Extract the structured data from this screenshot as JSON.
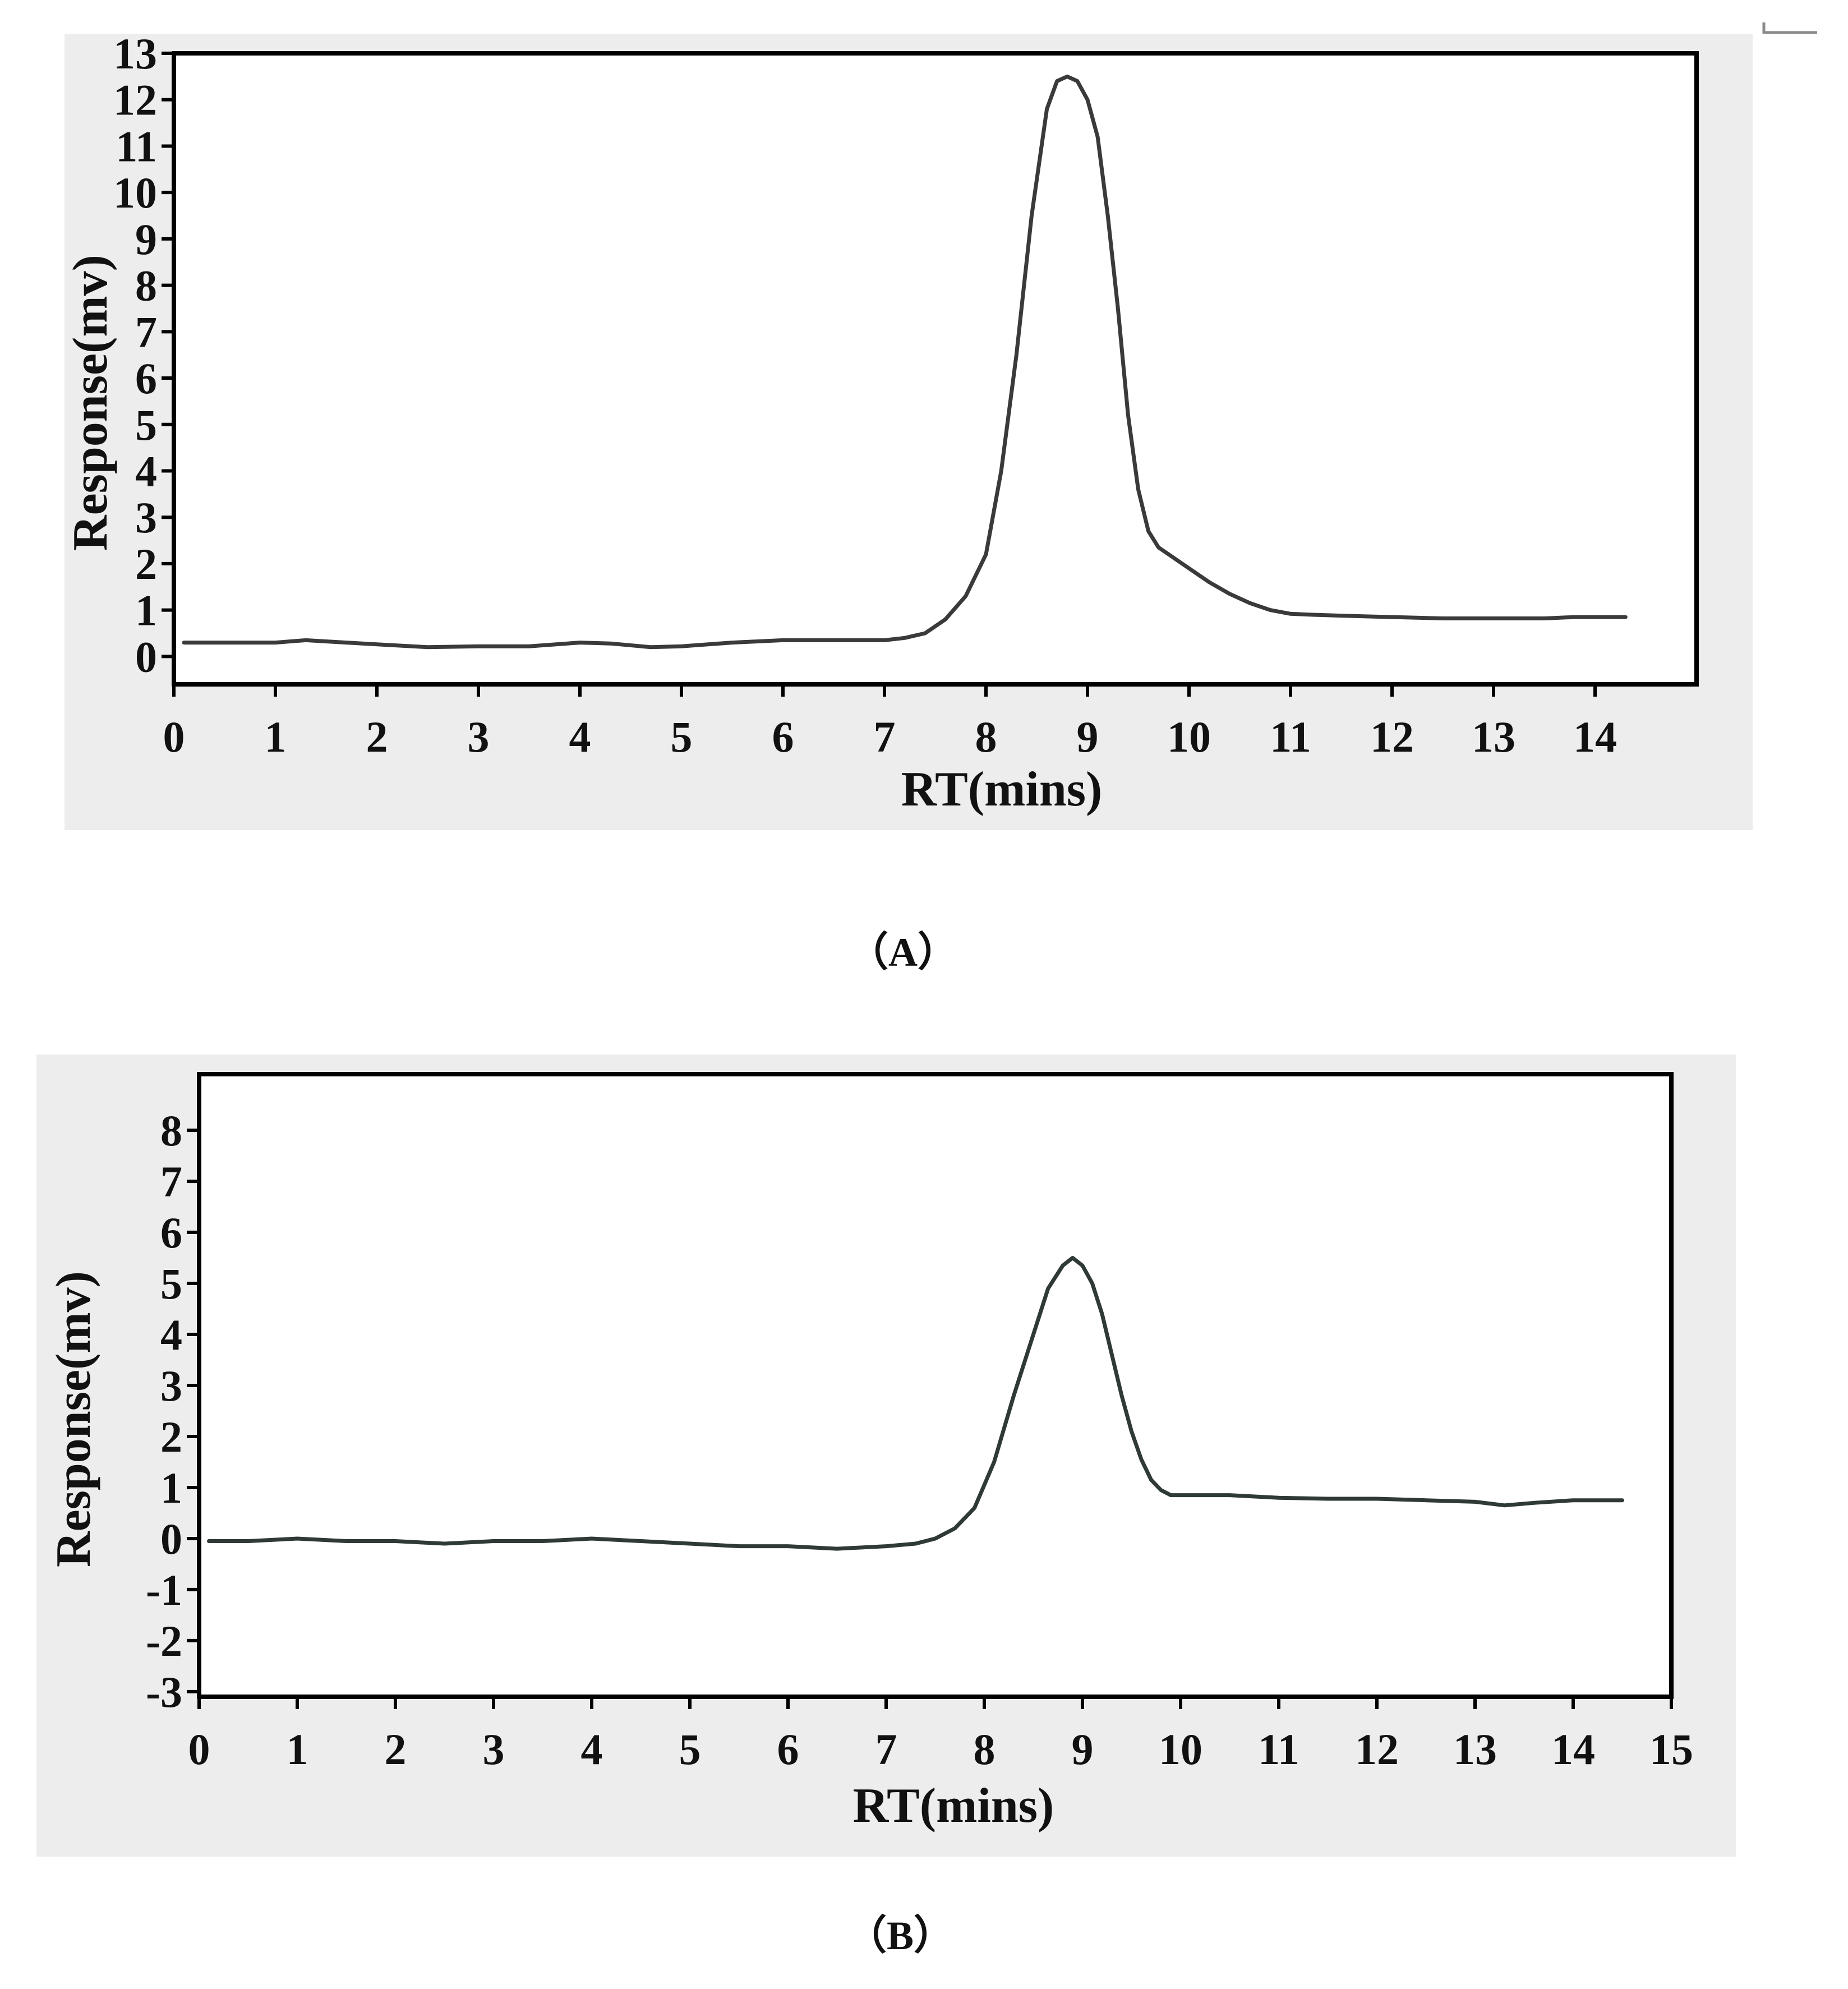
{
  "chart_data": [
    {
      "type": "line",
      "panel_label": "（A）",
      "xlabel": "RT(mins)",
      "ylabel": "Response(mv)",
      "xlim": [
        0,
        15
      ],
      "ylim": [
        -0.6,
        13
      ],
      "x_ticks": [
        0,
        1,
        2,
        3,
        4,
        5,
        6,
        7,
        8,
        9,
        10,
        11,
        12,
        13,
        14
      ],
      "y_ticks": [
        0,
        1,
        2,
        3,
        4,
        5,
        6,
        7,
        8,
        9,
        10,
        11,
        12,
        13
      ],
      "grid": false,
      "series": [
        {
          "x": [
            0.1,
            0.5,
            1.0,
            1.3,
            1.7,
            2.1,
            2.5,
            3.0,
            3.5,
            4.0,
            4.3,
            4.7,
            5.0,
            5.5,
            6.0,
            6.5,
            7.0,
            7.2,
            7.4,
            7.6,
            7.8,
            8.0,
            8.15,
            8.3,
            8.45,
            8.6,
            8.7,
            8.8,
            8.9,
            9.0,
            9.1,
            9.2,
            9.3,
            9.4,
            9.5,
            9.6,
            9.7,
            9.8,
            10.0,
            10.2,
            10.4,
            10.6,
            10.8,
            11.0,
            11.2,
            11.5,
            12.0,
            12.5,
            13.0,
            13.5,
            13.8,
            14.0,
            14.3
          ],
          "y": [
            0.3,
            0.3,
            0.3,
            0.35,
            0.3,
            0.25,
            0.2,
            0.22,
            0.22,
            0.3,
            0.28,
            0.2,
            0.22,
            0.3,
            0.35,
            0.35,
            0.35,
            0.4,
            0.5,
            0.8,
            1.3,
            2.2,
            4.0,
            6.5,
            9.5,
            11.8,
            12.4,
            12.5,
            12.4,
            12.0,
            11.2,
            9.5,
            7.5,
            5.2,
            3.6,
            2.7,
            2.35,
            2.2,
            1.9,
            1.6,
            1.35,
            1.15,
            1.0,
            0.92,
            0.9,
            0.88,
            0.85,
            0.82,
            0.82,
            0.82,
            0.85,
            0.85,
            0.85
          ]
        }
      ]
    },
    {
      "type": "line",
      "panel_label": "（B）",
      "xlabel": "RT(mins)",
      "ylabel": "Response(mv)",
      "xlim": [
        0,
        15
      ],
      "ylim": [
        -3.1,
        9.1
      ],
      "x_ticks": [
        0,
        1,
        2,
        3,
        4,
        5,
        6,
        7,
        8,
        9,
        10,
        11,
        12,
        13,
        14,
        15
      ],
      "y_ticks": [
        -3,
        -2,
        -1,
        0,
        1,
        2,
        3,
        4,
        5,
        6,
        7,
        8
      ],
      "grid": false,
      "series": [
        {
          "x": [
            0.1,
            0.5,
            1.0,
            1.5,
            2.0,
            2.5,
            3.0,
            3.5,
            4.0,
            4.5,
            5.0,
            5.5,
            6.0,
            6.5,
            7.0,
            7.3,
            7.5,
            7.7,
            7.9,
            8.1,
            8.3,
            8.5,
            8.65,
            8.8,
            8.9,
            9.0,
            9.1,
            9.2,
            9.3,
            9.4,
            9.5,
            9.6,
            9.7,
            9.8,
            9.9,
            10.0,
            10.5,
            11.0,
            11.5,
            12.0,
            12.5,
            13.0,
            13.3,
            13.6,
            14.0,
            14.5
          ],
          "y": [
            -0.05,
            -0.05,
            0.0,
            -0.05,
            -0.05,
            -0.1,
            -0.05,
            -0.05,
            0.0,
            -0.05,
            -0.1,
            -0.15,
            -0.15,
            -0.2,
            -0.15,
            -0.1,
            0.0,
            0.2,
            0.6,
            1.5,
            2.8,
            4.0,
            4.9,
            5.35,
            5.5,
            5.35,
            5.0,
            4.4,
            3.6,
            2.8,
            2.1,
            1.55,
            1.15,
            0.95,
            0.85,
            0.85,
            0.85,
            0.8,
            0.78,
            0.78,
            0.75,
            0.72,
            0.65,
            0.7,
            0.75,
            0.75
          ]
        }
      ]
    }
  ]
}
